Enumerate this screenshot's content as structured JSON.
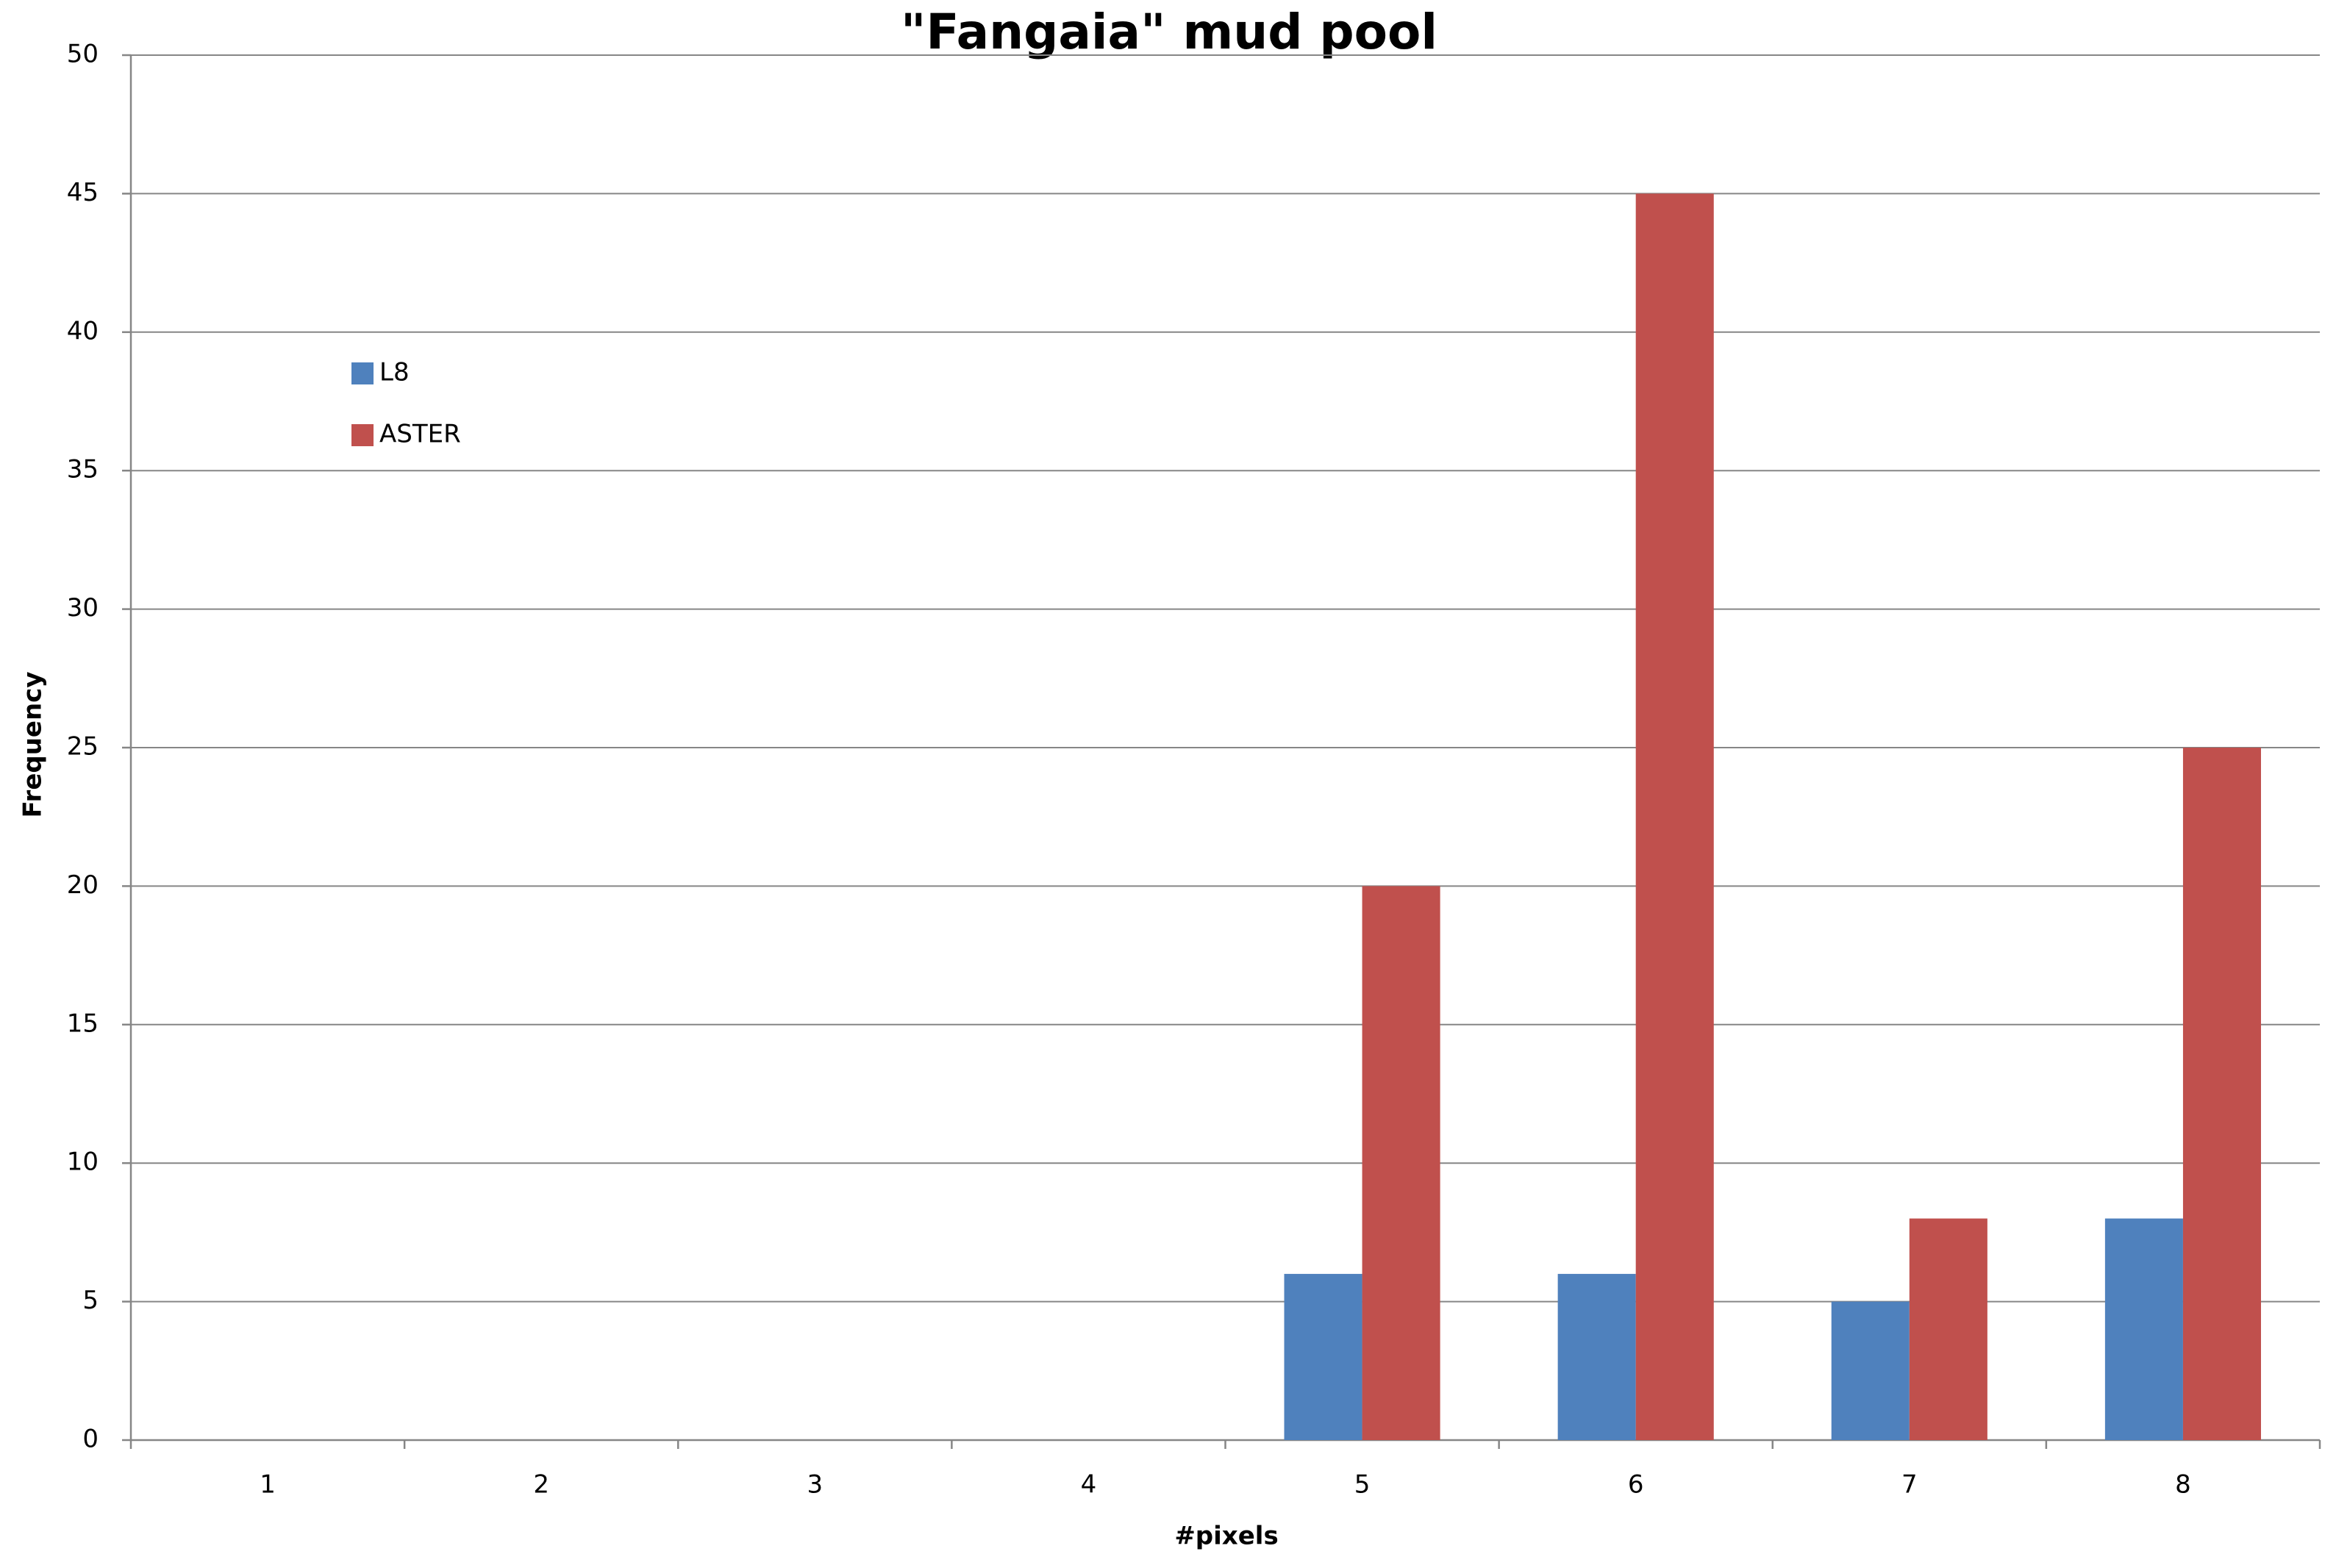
{
  "chart_data": {
    "type": "bar",
    "title": "\"Fangaia\" mud pool",
    "x_label": "#pixels",
    "y_label": "Frequency",
    "categories": [
      "1",
      "2",
      "3",
      "4",
      "5",
      "6",
      "7",
      "8"
    ],
    "series": [
      {
        "name": "L8",
        "color": "#4f81bd",
        "values": [
          0,
          0,
          0,
          0,
          6,
          6,
          5,
          8
        ]
      },
      {
        "name": "ASTER",
        "color": "#c0504d",
        "values": [
          0,
          0,
          0,
          0,
          20,
          45,
          8,
          25
        ]
      }
    ],
    "ylim": [
      0,
      50
    ],
    "yticks": [
      0,
      5,
      10,
      15,
      20,
      25,
      30,
      35,
      40,
      45,
      50
    ],
    "grid": true,
    "legend": "upper left"
  }
}
